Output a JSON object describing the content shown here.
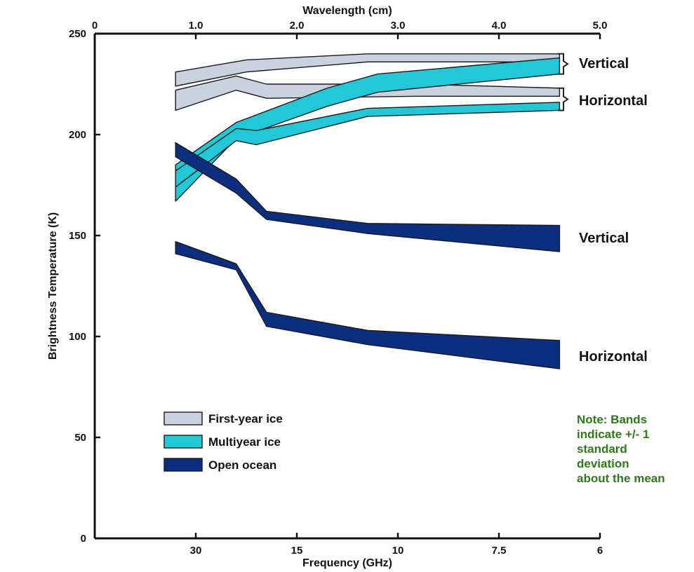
{
  "chart_data": {
    "type": "area",
    "title": "",
    "xlabel": "Frequency (GHz)",
    "x2label": "Wavelength (cm)",
    "ylabel": "Brightness Temperature (K)",
    "ylim": [
      0,
      250
    ],
    "wavelength_lim": [
      0,
      5.0
    ],
    "y_ticks": [
      "0",
      "50",
      "100",
      "150",
      "200",
      "250"
    ],
    "wavelength_ticks": [
      {
        "value": 0,
        "label": "0"
      },
      {
        "value": 1.0,
        "label": "1.0"
      },
      {
        "value": 2.0,
        "label": "2.0"
      },
      {
        "value": 3.0,
        "label": "3.0"
      },
      {
        "value": 4.0,
        "label": "4.0"
      },
      {
        "value": 5.0,
        "label": "5.0"
      }
    ],
    "frequency_ticks": [
      {
        "wavelength": 1.0,
        "label": "30"
      },
      {
        "wavelength": 2.0,
        "label": "15"
      },
      {
        "wavelength": 3.0,
        "label": "10"
      },
      {
        "wavelength": 4.0,
        "label": "7.5"
      },
      {
        "wavelength": 5.0,
        "label": "6"
      }
    ],
    "series": [
      {
        "name": "First-year ice",
        "group": "Vertical",
        "color": "#c9d3df",
        "x": [
          0.8,
          1.5,
          2.7,
          4.6
        ],
        "upper": [
          231,
          237,
          240,
          240
        ],
        "lower": [
          224,
          231,
          236,
          236
        ]
      },
      {
        "name": "First-year ice",
        "group": "Horizontal",
        "color": "#c9d3df",
        "x": [
          0.8,
          1.4,
          1.7,
          3.2,
          4.6
        ],
        "upper": [
          222,
          229,
          225,
          225,
          223
        ],
        "lower": [
          212,
          222,
          218,
          219,
          219
        ]
      },
      {
        "name": "Multiyear ice",
        "group": "Vertical",
        "color": "#22c8d8",
        "x": [
          0.8,
          1.4,
          2.3,
          2.8,
          4.6
        ],
        "upper": [
          185,
          206,
          223,
          230,
          238
        ],
        "lower": [
          167,
          198,
          214,
          221,
          230
        ]
      },
      {
        "name": "Multiyear ice",
        "group": "Horizontal",
        "color": "#22c8d8",
        "x": [
          0.8,
          1.4,
          1.6,
          2.7,
          4.6
        ],
        "upper": [
          182,
          203,
          202,
          213,
          216
        ],
        "lower": [
          174,
          197,
          195,
          209,
          212
        ]
      },
      {
        "name": "Open ocean",
        "group": "Vertical",
        "color": "#0b2f7e",
        "x": [
          0.8,
          1.4,
          1.7,
          2.7,
          4.6
        ],
        "upper": [
          196,
          178,
          162,
          156,
          155
        ],
        "lower": [
          189,
          171,
          158,
          151,
          142
        ]
      },
      {
        "name": "Open ocean",
        "group": "Horizontal",
        "color": "#0b2f7e",
        "x": [
          0.8,
          1.4,
          1.7,
          2.7,
          4.6
        ],
        "upper": [
          147,
          136,
          112,
          103,
          98
        ],
        "lower": [
          141,
          133,
          105,
          96,
          84
        ]
      }
    ],
    "right_labels": [
      "Vertical",
      "Horizontal",
      "Vertical",
      "Horizontal"
    ],
    "legend": {
      "placement": "bottom-left",
      "entries": [
        {
          "label": "First-year ice",
          "color": "#c9d3df"
        },
        {
          "label": "Multiyear ice",
          "color": "#22c8d8"
        },
        {
          "label": "Open ocean",
          "color": "#0b2f7e"
        }
      ]
    },
    "note": [
      "Note: Bands",
      "indicate +/- 1",
      "standard",
      "deviation",
      "about the mean"
    ],
    "note_color": "#2e7a17",
    "grid": false
  }
}
